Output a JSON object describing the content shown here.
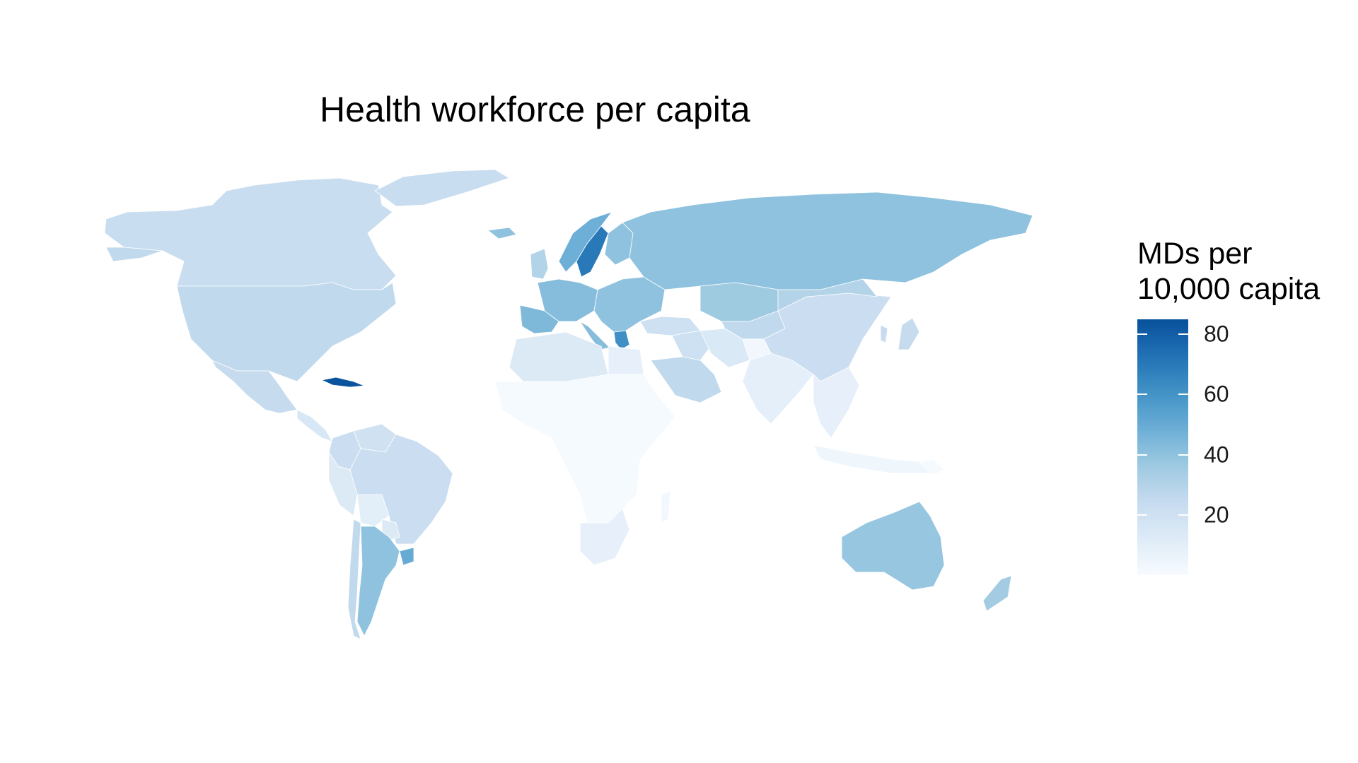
{
  "chart_data": {
    "type": "choropleth",
    "title": "Health workforce per capita",
    "legend": {
      "title_line1": "MDs per",
      "title_line2": "10,000 capita",
      "ticks": [
        20,
        40,
        60,
        80
      ],
      "range": [
        0,
        85
      ],
      "placement": "right",
      "palette": [
        "#f7fbff",
        "#deebf7",
        "#c6dbef",
        "#9ecae1",
        "#6baed6",
        "#4292c6",
        "#2171b5",
        "#08519c"
      ]
    },
    "regions": [
      {
        "name": "Canada",
        "value": 23
      },
      {
        "name": "Greenland",
        "value": 23
      },
      {
        "name": "United States",
        "value": 26
      },
      {
        "name": "Mexico",
        "value": 24
      },
      {
        "name": "Cuba",
        "value": 84
      },
      {
        "name": "Central America",
        "value": 15
      },
      {
        "name": "Colombia",
        "value": 22
      },
      {
        "name": "Venezuela",
        "value": 19
      },
      {
        "name": "Peru",
        "value": 13
      },
      {
        "name": "Bolivia",
        "value": 10
      },
      {
        "name": "Brazil",
        "value": 22
      },
      {
        "name": "Paraguay",
        "value": 13
      },
      {
        "name": "Argentina",
        "value": 40
      },
      {
        "name": "Chile",
        "value": 26
      },
      {
        "name": "Uruguay",
        "value": 50
      },
      {
        "name": "Iceland",
        "value": 40
      },
      {
        "name": "United Kingdom",
        "value": 30
      },
      {
        "name": "Norway",
        "value": 48
      },
      {
        "name": "Sweden",
        "value": 70
      },
      {
        "name": "Finland",
        "value": 40
      },
      {
        "name": "Western Europe",
        "value": 42
      },
      {
        "name": "Spain",
        "value": 44
      },
      {
        "name": "Italy",
        "value": 42
      },
      {
        "name": "Greece",
        "value": 62
      },
      {
        "name": "Eastern Europe",
        "value": 40
      },
      {
        "name": "Russia",
        "value": 40
      },
      {
        "name": "Kazakhstan",
        "value": 36
      },
      {
        "name": "Turkey",
        "value": 20
      },
      {
        "name": "Middle East",
        "value": 20
      },
      {
        "name": "Arabia",
        "value": 26
      },
      {
        "name": "Iran",
        "value": 14
      },
      {
        "name": "Central Asia",
        "value": 26
      },
      {
        "name": "Afghanistan",
        "value": 3
      },
      {
        "name": "India",
        "value": 9
      },
      {
        "name": "China",
        "value": 22
      },
      {
        "name": "Mongolia",
        "value": 30
      },
      {
        "name": "Korea",
        "value": 24
      },
      {
        "name": "Japan",
        "value": 24
      },
      {
        "name": "Southeast Asia",
        "value": 8
      },
      {
        "name": "Indonesia",
        "value": 4
      },
      {
        "name": "North Africa",
        "value": 13
      },
      {
        "name": "Egypt",
        "value": 8
      },
      {
        "name": "Sub-Saharan Africa",
        "value": 1
      },
      {
        "name": "Southern Africa",
        "value": 8
      },
      {
        "name": "Madagascar",
        "value": 2
      },
      {
        "name": "Australia",
        "value": 38
      },
      {
        "name": "New Zealand",
        "value": 35
      },
      {
        "name": "Papua New Guinea",
        "value": 1
      }
    ]
  }
}
